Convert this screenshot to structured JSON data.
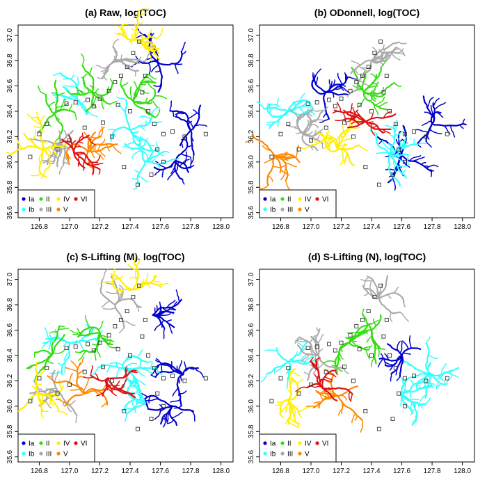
{
  "chart_data": [
    {
      "type": "map",
      "title": "(a) Raw, log(TOC)",
      "xticks": [
        "126.8",
        "127.0",
        "127.2",
        "127.4",
        "127.6",
        "127.8",
        "128.0"
      ],
      "yticks": [
        "35.6",
        "35.8",
        "36.0",
        "36.2",
        "36.4",
        "36.6",
        "36.8",
        "37.0"
      ],
      "xlim": [
        126.66,
        128.08
      ],
      "ylim": [
        35.56,
        37.08
      ],
      "legend_position": "bottom-left",
      "legend": [
        {
          "label": "Ia",
          "color": "#0000cc"
        },
        {
          "label": "II",
          "color": "#33dd11"
        },
        {
          "label": "IV",
          "color": "#ffee00"
        },
        {
          "label": "VI",
          "color": "#dd1111"
        },
        {
          "label": "Ib",
          "color": "#33ffff"
        },
        {
          "label": "III",
          "color": "#aaaaaa"
        },
        {
          "label": "V",
          "color": "#ff8800"
        }
      ],
      "clusters": [
        {
          "cluster": "Ia",
          "lon": 127.8,
          "lat": 36.25
        },
        {
          "cluster": "Ia",
          "lon": 127.58,
          "lat": 36.79
        },
        {
          "cluster": "Ia",
          "lon": 127.7,
          "lat": 36.01
        },
        {
          "cluster": "Ib",
          "lon": 127.5,
          "lat": 36.0
        },
        {
          "cluster": "Ib",
          "lon": 127.4,
          "lat": 36.25
        },
        {
          "cluster": "Ib",
          "lon": 127.05,
          "lat": 36.5
        },
        {
          "cluster": "II",
          "lon": 126.9,
          "lat": 36.38
        },
        {
          "cluster": "II",
          "lon": 127.15,
          "lat": 36.55
        },
        {
          "cluster": "II",
          "lon": 127.42,
          "lat": 36.48
        },
        {
          "cluster": "III",
          "lon": 126.93,
          "lat": 36.15
        },
        {
          "cluster": "III",
          "lon": 127.28,
          "lat": 36.78
        },
        {
          "cluster": "IV",
          "lon": 127.46,
          "lat": 36.95
        },
        {
          "cluster": "IV",
          "lon": 126.82,
          "lat": 36.1
        },
        {
          "cluster": "V",
          "lon": 127.12,
          "lat": 36.08
        },
        {
          "cluster": "VI",
          "lon": 127.03,
          "lat": 36.07
        }
      ],
      "stations": [
        [
          126.74,
          36.04
        ],
        [
          126.8,
          36.22
        ],
        [
          126.85,
          36.3
        ],
        [
          126.98,
          36.46
        ],
        [
          127.04,
          36.47
        ],
        [
          127.12,
          36.49
        ],
        [
          127.16,
          36.44
        ],
        [
          127.2,
          36.5
        ],
        [
          127.26,
          36.56
        ],
        [
          127.3,
          36.63
        ],
        [
          127.34,
          36.68
        ],
        [
          127.38,
          36.75
        ],
        [
          127.42,
          36.86
        ],
        [
          127.46,
          36.95
        ],
        [
          127.48,
          36.55
        ],
        [
          127.52,
          36.4
        ],
        [
          127.56,
          36.3
        ],
        [
          127.62,
          36.22
        ],
        [
          127.68,
          36.24
        ],
        [
          127.76,
          36.2
        ],
        [
          127.9,
          36.22
        ],
        [
          127.58,
          36.1
        ],
        [
          127.62,
          36.0
        ],
        [
          127.54,
          35.9
        ],
        [
          127.45,
          35.82
        ],
        [
          127.36,
          35.96
        ],
        [
          127.28,
          36.2
        ],
        [
          127.22,
          36.31
        ],
        [
          127.1,
          36.27
        ],
        [
          127.0,
          36.17
        ],
        [
          126.92,
          36.1
        ],
        [
          127.4,
          36.4
        ],
        [
          127.32,
          36.45
        ],
        [
          127.5,
          36.68
        ]
      ]
    },
    {
      "type": "map",
      "title": "(b) ODonnell, log(TOC)",
      "xticks": [
        "126.8",
        "127.0",
        "127.2",
        "127.4",
        "127.6",
        "127.8",
        "128.0"
      ],
      "yticks": [
        "35.6",
        "35.8",
        "36.0",
        "36.2",
        "36.4",
        "36.6",
        "36.8",
        "37.0"
      ],
      "xlim": [
        126.66,
        128.08
      ],
      "ylim": [
        35.56,
        37.08
      ],
      "legend_position": "bottom-left",
      "legend": [
        {
          "label": "Ia",
          "color": "#0000cc"
        },
        {
          "label": "II",
          "color": "#33dd11"
        },
        {
          "label": "IV",
          "color": "#ffee00"
        },
        {
          "label": "VI",
          "color": "#dd1111"
        },
        {
          "label": "Ib",
          "color": "#33ffff"
        },
        {
          "label": "III",
          "color": "#aaaaaa"
        },
        {
          "label": "V",
          "color": "#ff8800"
        }
      ],
      "clusters": [
        {
          "cluster": "Ia",
          "lon": 127.1,
          "lat": 36.55
        },
        {
          "cluster": "Ia",
          "lon": 127.8,
          "lat": 36.3
        },
        {
          "cluster": "Ia",
          "lon": 127.6,
          "lat": 36.05
        },
        {
          "cluster": "Ib",
          "lon": 127.52,
          "lat": 36.05
        },
        {
          "cluster": "Ib",
          "lon": 126.85,
          "lat": 36.4
        },
        {
          "cluster": "II",
          "lon": 127.35,
          "lat": 36.55
        },
        {
          "cluster": "III",
          "lon": 126.95,
          "lat": 36.22
        },
        {
          "cluster": "III",
          "lon": 127.4,
          "lat": 36.8
        },
        {
          "cluster": "IV",
          "lon": 127.18,
          "lat": 36.1
        },
        {
          "cluster": "V",
          "lon": 126.76,
          "lat": 36.05
        },
        {
          "cluster": "VI",
          "lon": 127.36,
          "lat": 36.32
        }
      ],
      "stations": [
        [
          126.74,
          36.04
        ],
        [
          126.8,
          36.22
        ],
        [
          126.85,
          36.3
        ],
        [
          126.98,
          36.46
        ],
        [
          127.04,
          36.47
        ],
        [
          127.12,
          36.49
        ],
        [
          127.16,
          36.44
        ],
        [
          127.2,
          36.5
        ],
        [
          127.26,
          36.56
        ],
        [
          127.3,
          36.63
        ],
        [
          127.34,
          36.68
        ],
        [
          127.38,
          36.75
        ],
        [
          127.42,
          36.86
        ],
        [
          127.46,
          36.95
        ],
        [
          127.48,
          36.55
        ],
        [
          127.52,
          36.4
        ],
        [
          127.56,
          36.3
        ],
        [
          127.62,
          36.22
        ],
        [
          127.68,
          36.24
        ],
        [
          127.76,
          36.2
        ],
        [
          127.9,
          36.22
        ],
        [
          127.58,
          36.1
        ],
        [
          127.62,
          36.0
        ],
        [
          127.54,
          35.9
        ],
        [
          127.45,
          35.82
        ],
        [
          127.36,
          35.96
        ],
        [
          127.28,
          36.2
        ],
        [
          127.22,
          36.31
        ],
        [
          127.1,
          36.27
        ],
        [
          127.0,
          36.17
        ],
        [
          126.92,
          36.1
        ],
        [
          127.4,
          36.4
        ],
        [
          127.32,
          36.45
        ],
        [
          127.5,
          36.68
        ]
      ]
    },
    {
      "type": "map",
      "title": "(c) S-Lifting (M), log(TOC)",
      "xticks": [
        "126.8",
        "127.0",
        "127.2",
        "127.4",
        "127.6",
        "127.8",
        "128.0"
      ],
      "yticks": [
        "35.6",
        "35.8",
        "36.0",
        "36.2",
        "36.4",
        "36.6",
        "36.8",
        "37.0"
      ],
      "xlim": [
        126.66,
        128.08
      ],
      "ylim": [
        35.56,
        37.08
      ],
      "legend_position": "bottom-left",
      "legend": [
        {
          "label": "Ia",
          "color": "#0000cc"
        },
        {
          "label": "II",
          "color": "#33dd11"
        },
        {
          "label": "IV",
          "color": "#ffee00"
        },
        {
          "label": "VI",
          "color": "#dd1111"
        },
        {
          "label": "Ib",
          "color": "#33ffff"
        },
        {
          "label": "III",
          "color": "#aaaaaa"
        },
        {
          "label": "V",
          "color": "#ff8800"
        }
      ],
      "clusters": [
        {
          "cluster": "Ia",
          "lon": 127.75,
          "lat": 36.25
        },
        {
          "cluster": "Ia",
          "lon": 127.55,
          "lat": 36.72
        },
        {
          "cluster": "Ia",
          "lon": 127.68,
          "lat": 36.0
        },
        {
          "cluster": "Ib",
          "lon": 127.5,
          "lat": 36.02
        },
        {
          "cluster": "Ib",
          "lon": 127.35,
          "lat": 36.3
        },
        {
          "cluster": "Ib",
          "lon": 127.0,
          "lat": 36.5
        },
        {
          "cluster": "II",
          "lon": 126.88,
          "lat": 36.4
        },
        {
          "cluster": "II",
          "lon": 127.2,
          "lat": 36.58
        },
        {
          "cluster": "III",
          "lon": 126.92,
          "lat": 36.12
        },
        {
          "cluster": "III",
          "lon": 127.3,
          "lat": 36.8
        },
        {
          "cluster": "IV",
          "lon": 126.8,
          "lat": 36.1
        },
        {
          "cluster": "IV",
          "lon": 127.42,
          "lat": 36.92
        },
        {
          "cluster": "V",
          "lon": 127.1,
          "lat": 36.1
        },
        {
          "cluster": "VI",
          "lon": 127.25,
          "lat": 36.22
        }
      ],
      "stations": [
        [
          126.74,
          36.04
        ],
        [
          126.8,
          36.22
        ],
        [
          126.85,
          36.3
        ],
        [
          126.98,
          36.46
        ],
        [
          127.04,
          36.47
        ],
        [
          127.12,
          36.49
        ],
        [
          127.16,
          36.44
        ],
        [
          127.2,
          36.5
        ],
        [
          127.26,
          36.56
        ],
        [
          127.3,
          36.63
        ],
        [
          127.34,
          36.68
        ],
        [
          127.38,
          36.75
        ],
        [
          127.42,
          36.86
        ],
        [
          127.46,
          36.95
        ],
        [
          127.48,
          36.55
        ],
        [
          127.52,
          36.4
        ],
        [
          127.56,
          36.3
        ],
        [
          127.62,
          36.22
        ],
        [
          127.68,
          36.24
        ],
        [
          127.76,
          36.2
        ],
        [
          127.9,
          36.22
        ],
        [
          127.58,
          36.1
        ],
        [
          127.62,
          36.0
        ],
        [
          127.54,
          35.9
        ],
        [
          127.45,
          35.82
        ],
        [
          127.36,
          35.96
        ],
        [
          127.28,
          36.2
        ],
        [
          127.22,
          36.31
        ],
        [
          127.1,
          36.27
        ],
        [
          127.0,
          36.17
        ],
        [
          126.92,
          36.1
        ],
        [
          127.4,
          36.4
        ],
        [
          127.32,
          36.45
        ],
        [
          127.5,
          36.68
        ]
      ]
    },
    {
      "type": "map",
      "title": "(d) S-Lifting (N), log(TOC)",
      "xticks": [
        "126.8",
        "127.0",
        "127.2",
        "127.4",
        "127.6",
        "127.8",
        "128.0"
      ],
      "yticks": [
        "35.6",
        "35.8",
        "36.0",
        "36.2",
        "36.4",
        "36.6",
        "36.8",
        "37.0"
      ],
      "xlim": [
        126.66,
        128.08
      ],
      "ylim": [
        35.56,
        37.08
      ],
      "legend_position": "bottom-left",
      "legend": [
        {
          "label": "Ia",
          "color": "#0000cc"
        },
        {
          "label": "II",
          "color": "#33dd11"
        },
        {
          "label": "IV",
          "color": "#ffee00"
        },
        {
          "label": "VI",
          "color": "#dd1111"
        },
        {
          "label": "Ib",
          "color": "#33ffff"
        },
        {
          "label": "III",
          "color": "#aaaaaa"
        },
        {
          "label": "V",
          "color": "#ff8800"
        }
      ],
      "clusters": [
        {
          "cluster": "Ia",
          "lon": 127.6,
          "lat": 36.4
        },
        {
          "cluster": "Ib",
          "lon": 127.6,
          "lat": 36.1
        },
        {
          "cluster": "Ib",
          "lon": 127.8,
          "lat": 36.25
        },
        {
          "cluster": "Ib",
          "lon": 126.85,
          "lat": 36.35
        },
        {
          "cluster": "II",
          "lon": 127.25,
          "lat": 36.5
        },
        {
          "cluster": "II",
          "lon": 127.4,
          "lat": 36.6
        },
        {
          "cluster": "III",
          "lon": 127.05,
          "lat": 36.4
        },
        {
          "cluster": "III",
          "lon": 127.45,
          "lat": 36.85
        },
        {
          "cluster": "IV",
          "lon": 126.85,
          "lat": 36.05
        },
        {
          "cluster": "V",
          "lon": 127.18,
          "lat": 36.08
        },
        {
          "cluster": "VI",
          "lon": 127.08,
          "lat": 36.14
        }
      ],
      "stations": [
        [
          126.74,
          36.04
        ],
        [
          126.8,
          36.22
        ],
        [
          126.85,
          36.3
        ],
        [
          126.98,
          36.46
        ],
        [
          127.04,
          36.47
        ],
        [
          127.12,
          36.49
        ],
        [
          127.16,
          36.44
        ],
        [
          127.2,
          36.5
        ],
        [
          127.26,
          36.56
        ],
        [
          127.3,
          36.63
        ],
        [
          127.34,
          36.68
        ],
        [
          127.38,
          36.75
        ],
        [
          127.42,
          36.86
        ],
        [
          127.46,
          36.95
        ],
        [
          127.48,
          36.55
        ],
        [
          127.52,
          36.4
        ],
        [
          127.56,
          36.3
        ],
        [
          127.62,
          36.22
        ],
        [
          127.68,
          36.24
        ],
        [
          127.76,
          36.2
        ],
        [
          127.9,
          36.22
        ],
        [
          127.58,
          36.1
        ],
        [
          127.62,
          36.0
        ],
        [
          127.54,
          35.9
        ],
        [
          127.45,
          35.82
        ],
        [
          127.36,
          35.96
        ],
        [
          127.28,
          36.2
        ],
        [
          127.22,
          36.31
        ],
        [
          127.1,
          36.27
        ],
        [
          127.0,
          36.17
        ],
        [
          126.92,
          36.1
        ],
        [
          127.4,
          36.4
        ],
        [
          127.32,
          36.45
        ],
        [
          127.5,
          36.68
        ]
      ]
    }
  ]
}
